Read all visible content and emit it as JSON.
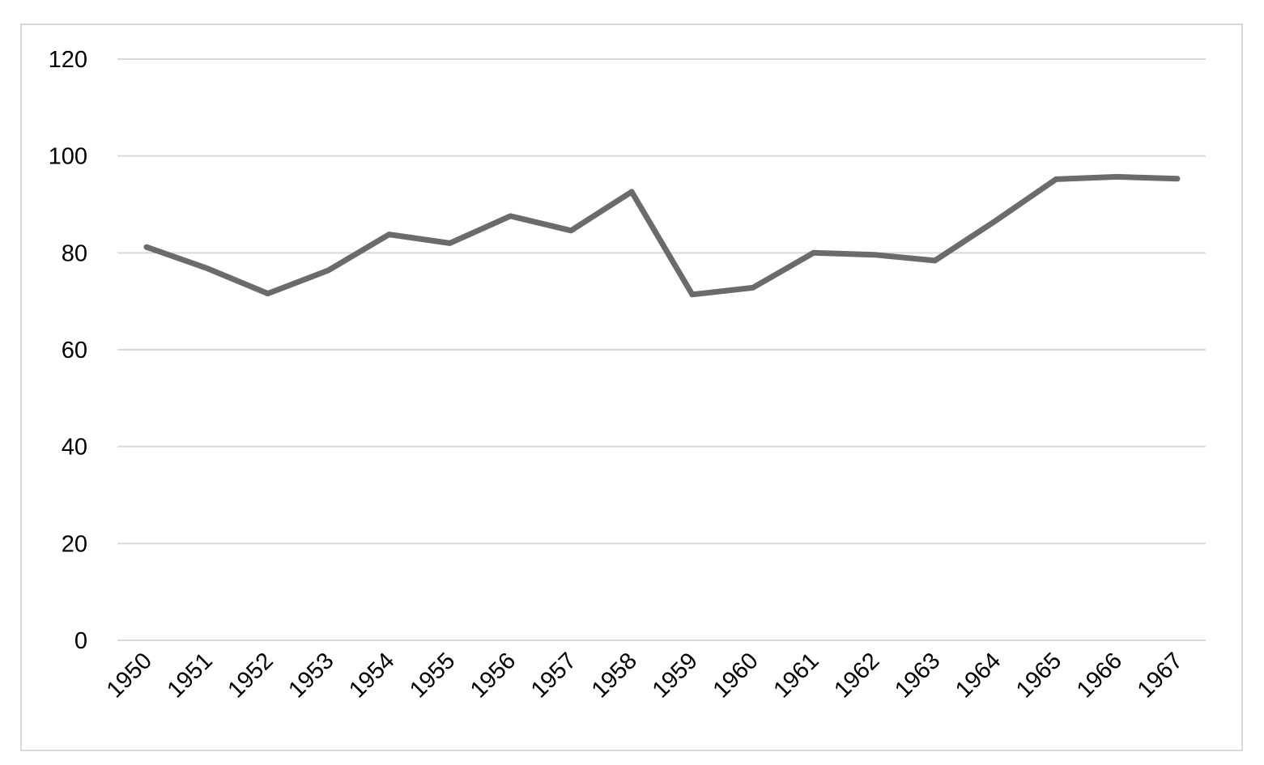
{
  "chart_data": {
    "type": "line",
    "title": "",
    "xlabel": "",
    "ylabel": "",
    "categories": [
      "1950",
      "1951",
      "1952",
      "1953",
      "1954",
      "1955",
      "1956",
      "1957",
      "1958",
      "1959",
      "1960",
      "1961",
      "1962",
      "1963",
      "1964",
      "1965",
      "1966",
      "1967"
    ],
    "series": [
      {
        "values": [
          81.2,
          76.8,
          71.6,
          76.4,
          83.8,
          82.0,
          87.6,
          84.6,
          92.6,
          71.4,
          72.8,
          80.0,
          79.6,
          78.4,
          86.6,
          95.2,
          95.7,
          95.3
        ],
        "color": "#6b6b6b"
      }
    ],
    "ylim": [
      0,
      120
    ],
    "yticks": [
      0,
      20,
      40,
      60,
      80,
      100,
      120
    ],
    "grid": true,
    "legend": "none"
  }
}
